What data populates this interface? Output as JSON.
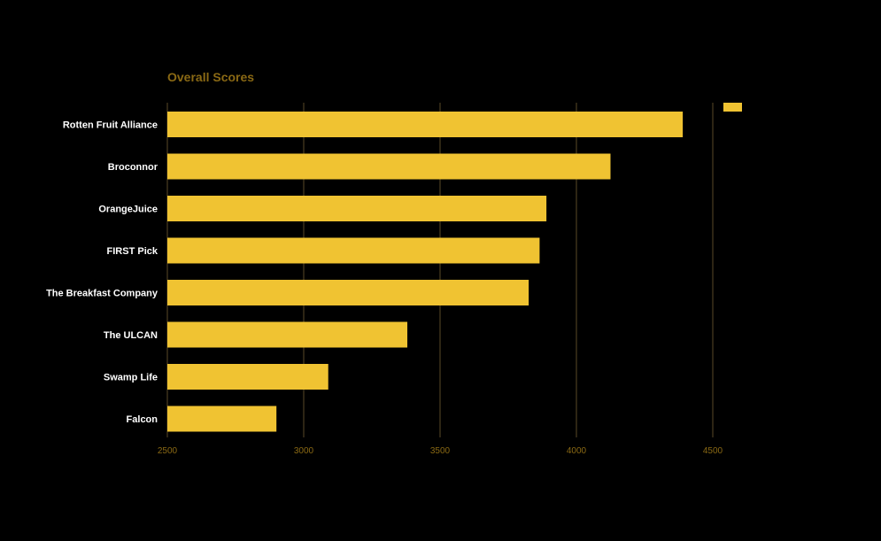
{
  "chart_data": {
    "type": "bar",
    "orientation": "horizontal",
    "title": "Overall Scores",
    "categories": [
      "Rotten Fruit Alliance",
      "Broconnor",
      "OrangeJuice",
      "FIRST Pick",
      "The Breakfast Company",
      "The ULCAN",
      "Swamp Life",
      "Falcon"
    ],
    "series": [
      {
        "values": [
          4390,
          4125,
          3890,
          3865,
          3825,
          3380,
          3090,
          2900
        ]
      }
    ],
    "xlim": [
      2500,
      4500
    ],
    "xticks": [
      "2500",
      "3000",
      "3500",
      "4000",
      "4500"
    ],
    "xlabel": "",
    "ylabel": "",
    "grid": "vertical",
    "legend": "top-right",
    "colors": {
      "background": "#000000",
      "bar": "#f0c332",
      "title": "#8a6914",
      "tick": "#8a6914",
      "grid": "#5a4a28",
      "category_label": "#ffffff"
    }
  }
}
